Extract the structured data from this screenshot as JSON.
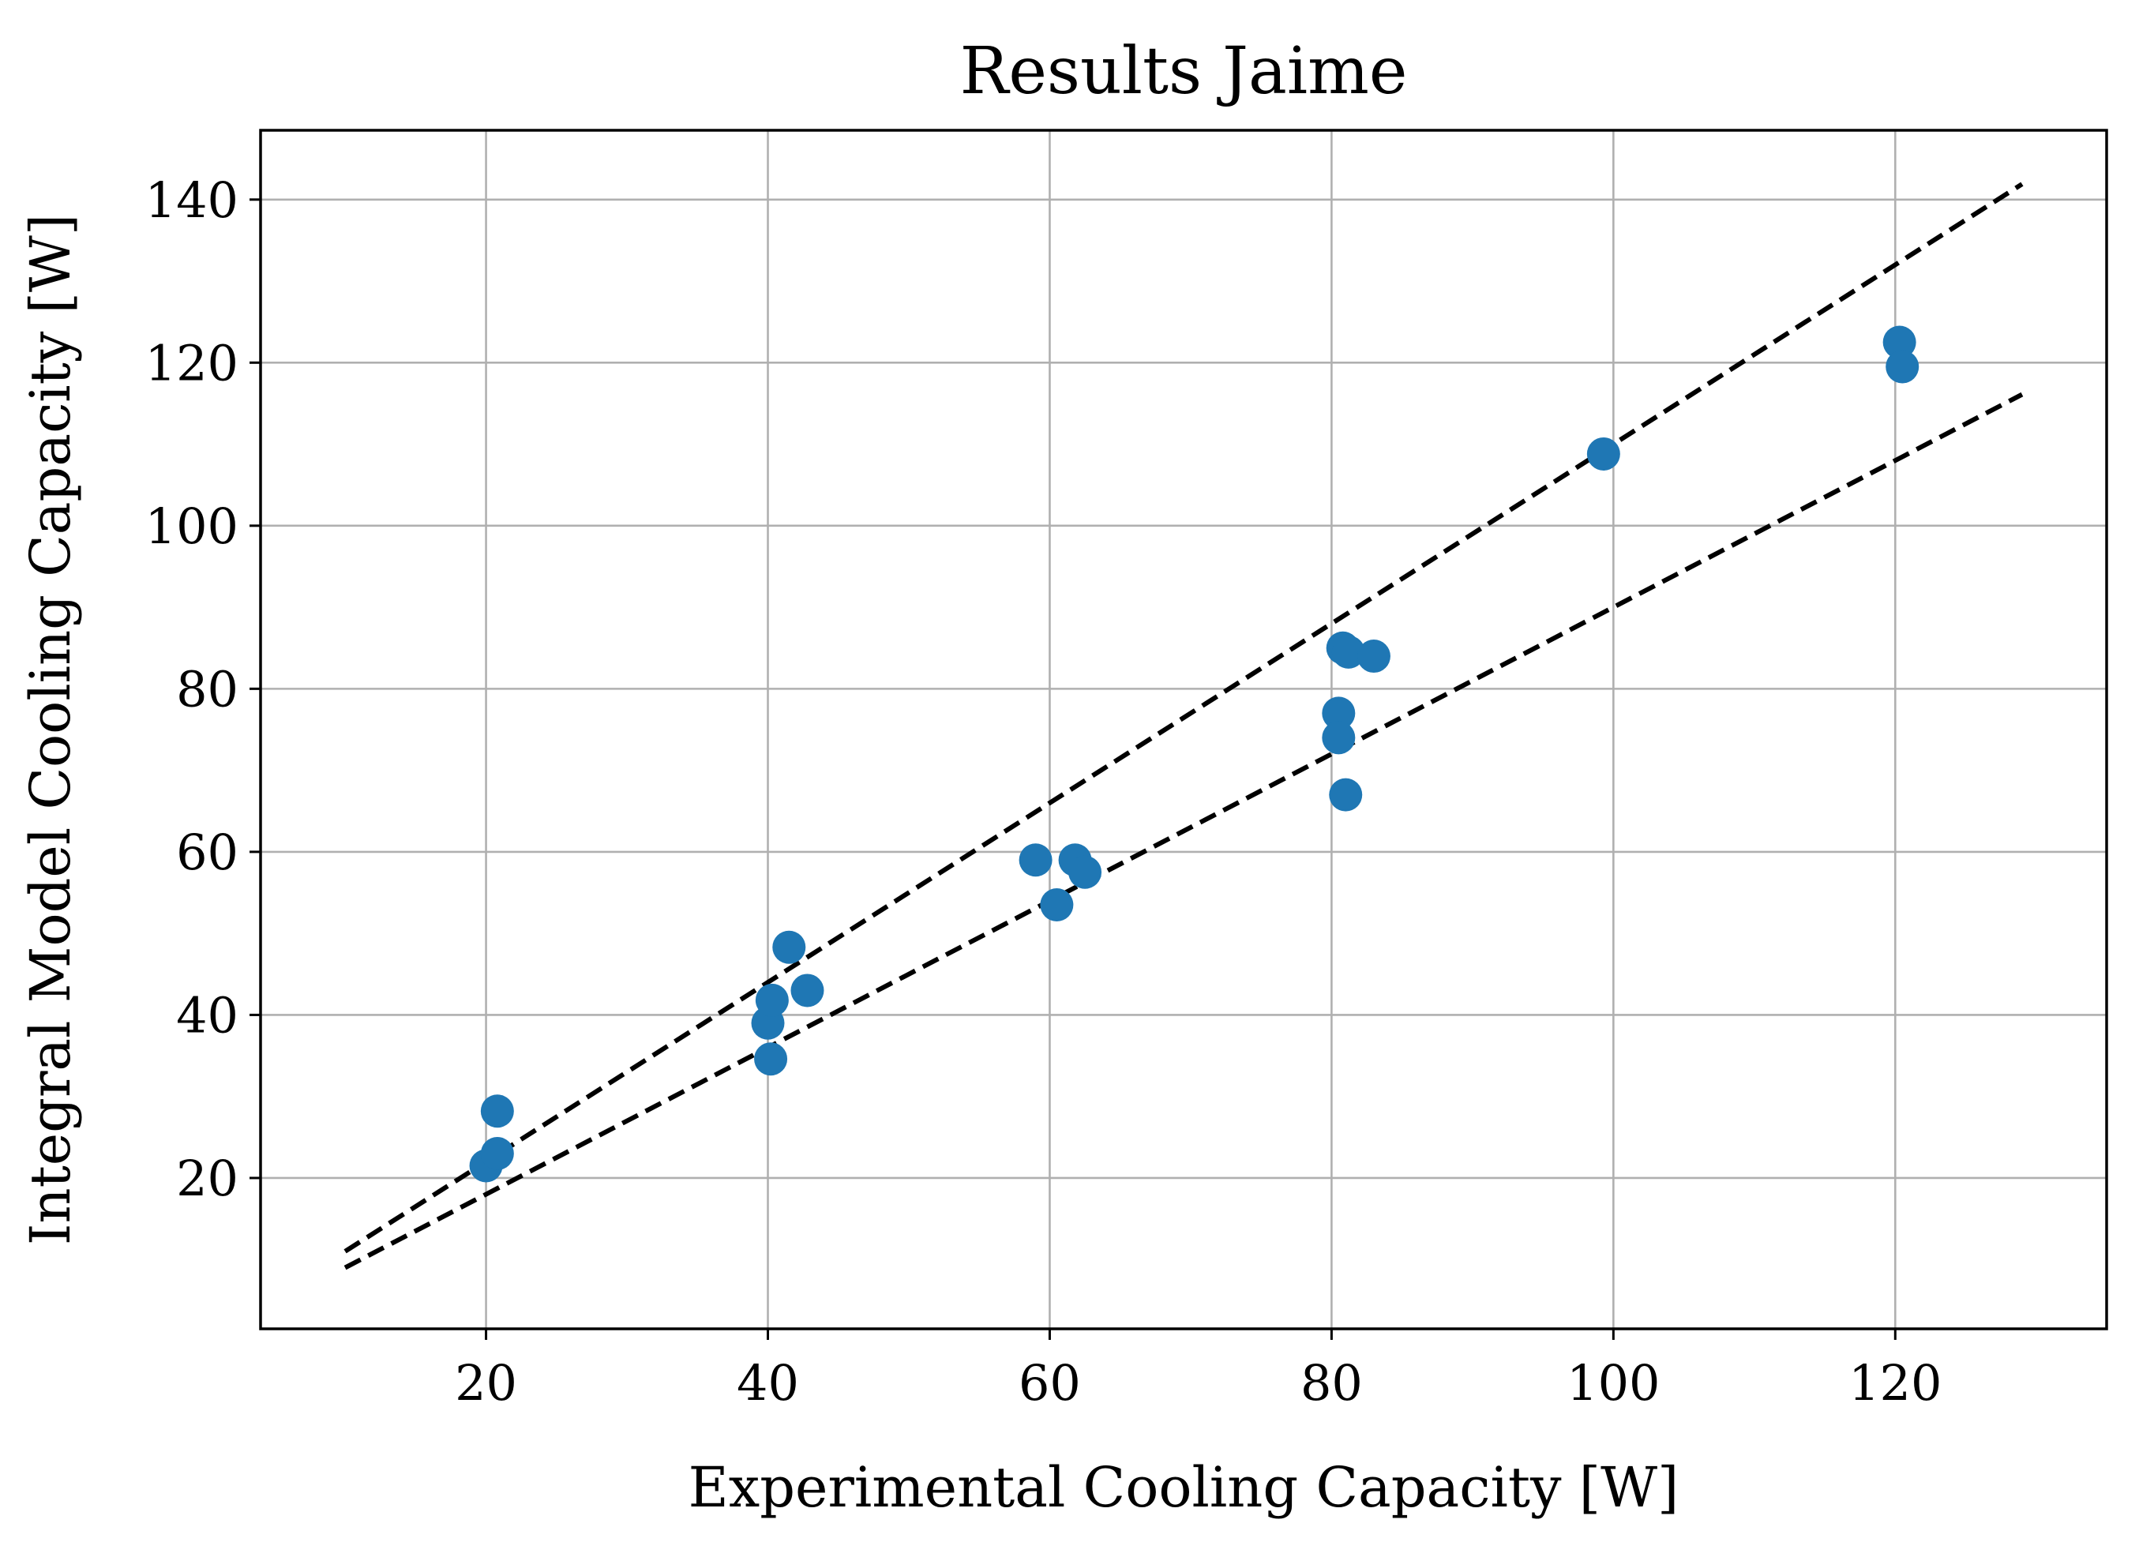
{
  "chart_data": {
    "type": "scatter",
    "title": "Results Jaime",
    "xlabel": "Experimental Cooling Capacity [W]",
    "ylabel": "Integral Model Cooling Capacity [W]",
    "xlim": [
      4,
      135
    ],
    "ylim": [
      1.5,
      148.5
    ],
    "xticks": [
      20,
      40,
      60,
      80,
      100,
      120
    ],
    "yticks": [
      20,
      40,
      60,
      80,
      100,
      120,
      140
    ],
    "grid": true,
    "legend": "none",
    "colors": {
      "points": "#1f77b4",
      "reference_lines": "#000000",
      "grid": "#b0b0b0",
      "axes": "#000000"
    },
    "series": [
      {
        "points": [
          {
            "x": 20.0,
            "y": 21.5
          },
          {
            "x": 20.8,
            "y": 23.0
          },
          {
            "x": 20.8,
            "y": 28.2
          },
          {
            "x": 40.0,
            "y": 39.0
          },
          {
            "x": 40.2,
            "y": 34.6
          },
          {
            "x": 40.3,
            "y": 41.8
          },
          {
            "x": 41.5,
            "y": 48.3
          },
          {
            "x": 42.8,
            "y": 43.0
          },
          {
            "x": 59.0,
            "y": 59.0
          },
          {
            "x": 60.5,
            "y": 53.5
          },
          {
            "x": 61.8,
            "y": 59.0
          },
          {
            "x": 62.5,
            "y": 57.5
          },
          {
            "x": 80.5,
            "y": 77.0
          },
          {
            "x": 80.5,
            "y": 74.0
          },
          {
            "x": 80.8,
            "y": 85.0
          },
          {
            "x": 81.0,
            "y": 67.0
          },
          {
            "x": 81.2,
            "y": 84.5
          },
          {
            "x": 83.0,
            "y": 84.0
          },
          {
            "x": 99.3,
            "y": 108.8
          },
          {
            "x": 120.3,
            "y": 122.5
          },
          {
            "x": 120.5,
            "y": 119.5
          }
        ]
      }
    ],
    "reference_lines": [
      {
        "style": "dashed",
        "x": [
          10,
          129
        ],
        "y": [
          11.0,
          141.9
        ]
      },
      {
        "style": "dashed",
        "x": [
          10,
          129
        ],
        "y": [
          9.0,
          116.1
        ]
      }
    ]
  }
}
